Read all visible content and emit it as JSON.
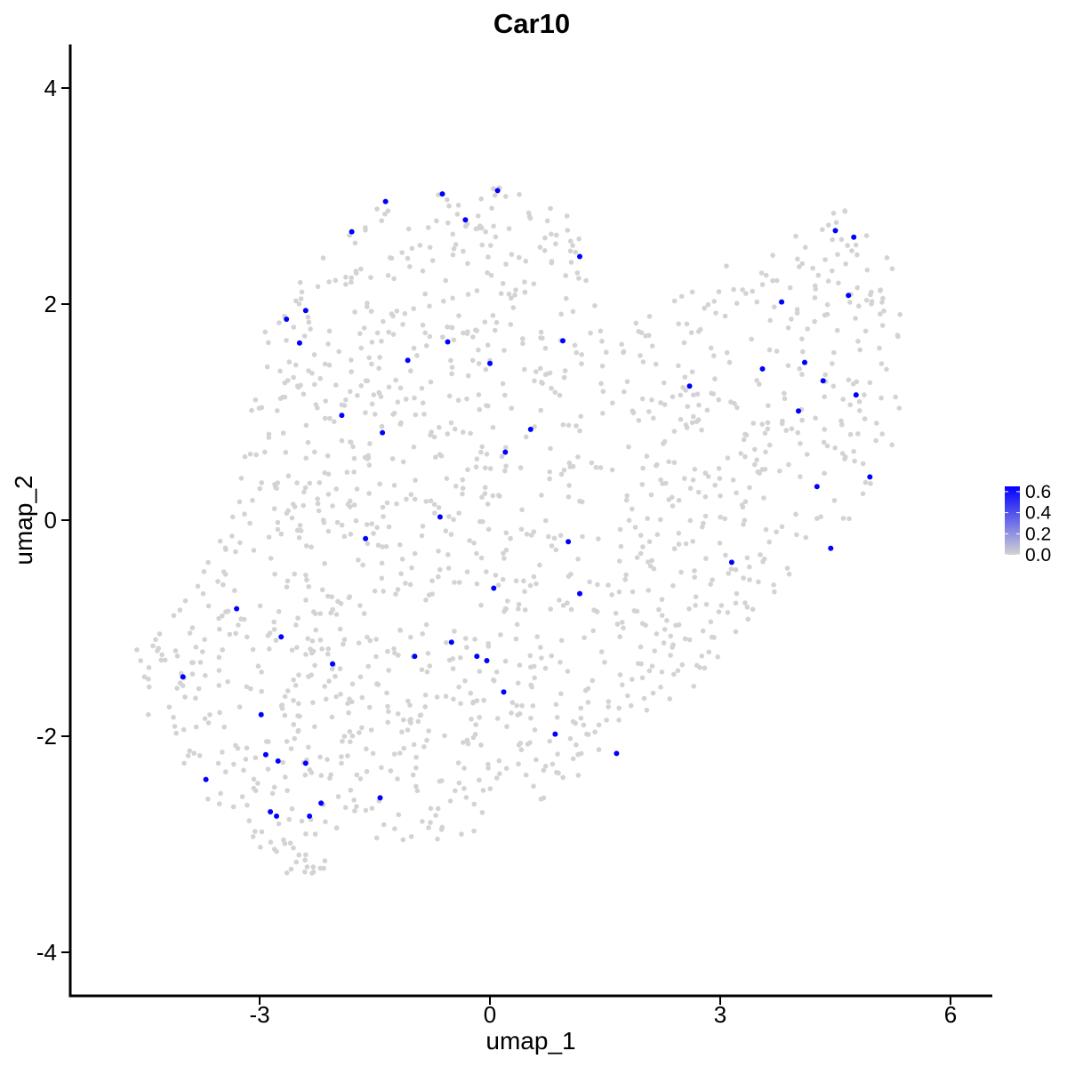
{
  "chart_data": {
    "type": "scatter",
    "title": "Car10",
    "xlabel": "umap_1",
    "ylabel": "umap_2",
    "xlim": [
      -5.4,
      6.6
    ],
    "ylim": [
      -4.35,
      4.4
    ],
    "xticks": [
      -3,
      0,
      3,
      6
    ],
    "xtick_labels": [
      "-3",
      "0",
      "3",
      "6"
    ],
    "yticks": [
      -4,
      -2,
      0,
      2,
      4
    ],
    "ytick_labels": [
      "-4",
      "-2",
      "0",
      "2",
      "4"
    ],
    "grid": false,
    "colors": {
      "low": "#d3d3d3",
      "high": "#0000ff"
    },
    "legend": {
      "placement": "right",
      "type": "colorbar",
      "range": [
        0.0,
        0.65
      ],
      "labels": [
        "0.6",
        "0.4",
        "0.2",
        "0.0"
      ],
      "label_values": [
        0.6,
        0.4,
        0.2,
        0.0
      ]
    },
    "background_cells": {
      "approximate_count": 1500,
      "value": 0.0,
      "region_note": "cells with zero expression spread across two merged lobes"
    },
    "expressing_cells": [
      {
        "x": -4.0,
        "y": -1.45
      },
      {
        "x": -3.7,
        "y": -2.4
      },
      {
        "x": -3.3,
        "y": -0.82
      },
      {
        "x": -2.98,
        "y": -1.8
      },
      {
        "x": -2.92,
        "y": -2.17
      },
      {
        "x": -2.86,
        "y": -2.7
      },
      {
        "x": -2.78,
        "y": -2.74
      },
      {
        "x": -2.76,
        "y": -2.23
      },
      {
        "x": -2.72,
        "y": -1.08
      },
      {
        "x": -2.65,
        "y": 1.86
      },
      {
        "x": -2.48,
        "y": 1.64
      },
      {
        "x": -2.4,
        "y": 1.94
      },
      {
        "x": -2.4,
        "y": -2.25
      },
      {
        "x": -2.35,
        "y": -2.74
      },
      {
        "x": -2.2,
        "y": -2.62
      },
      {
        "x": -2.05,
        "y": -1.33
      },
      {
        "x": -1.93,
        "y": 0.97
      },
      {
        "x": -1.8,
        "y": 2.67
      },
      {
        "x": -1.62,
        "y": -0.17
      },
      {
        "x": -1.4,
        "y": 0.81
      },
      {
        "x": -1.43,
        "y": -2.57
      },
      {
        "x": -1.36,
        "y": 2.95
      },
      {
        "x": -1.07,
        "y": 1.48
      },
      {
        "x": -0.98,
        "y": -1.26
      },
      {
        "x": -0.62,
        "y": 3.02
      },
      {
        "x": -0.65,
        "y": 0.03
      },
      {
        "x": -0.55,
        "y": 1.65
      },
      {
        "x": -0.5,
        "y": -1.13
      },
      {
        "x": -0.32,
        "y": 2.78
      },
      {
        "x": -0.17,
        "y": -1.26
      },
      {
        "x": -0.04,
        "y": -1.3
      },
      {
        "x": 0.0,
        "y": 1.45
      },
      {
        "x": 0.05,
        "y": -0.63
      },
      {
        "x": 0.1,
        "y": 3.05
      },
      {
        "x": 0.18,
        "y": -1.59
      },
      {
        "x": 0.2,
        "y": 0.63
      },
      {
        "x": 0.53,
        "y": 0.84
      },
      {
        "x": 0.85,
        "y": -1.98
      },
      {
        "x": 0.95,
        "y": 1.66
      },
      {
        "x": 1.02,
        "y": -0.2
      },
      {
        "x": 1.17,
        "y": -0.68
      },
      {
        "x": 1.17,
        "y": 2.44
      },
      {
        "x": 1.65,
        "y": -2.16
      },
      {
        "x": 2.6,
        "y": 1.24
      },
      {
        "x": 3.15,
        "y": -0.39
      },
      {
        "x": 3.55,
        "y": 1.4
      },
      {
        "x": 3.8,
        "y": 2.02
      },
      {
        "x": 4.02,
        "y": 1.01
      },
      {
        "x": 4.1,
        "y": 1.46
      },
      {
        "x": 4.26,
        "y": 0.31
      },
      {
        "x": 4.34,
        "y": 1.29
      },
      {
        "x": 4.44,
        "y": -0.26
      },
      {
        "x": 4.5,
        "y": 2.68
      },
      {
        "x": 4.67,
        "y": 2.08
      },
      {
        "x": 4.74,
        "y": 2.62
      },
      {
        "x": 4.77,
        "y": 1.16
      },
      {
        "x": 4.95,
        "y": 0.4
      }
    ]
  }
}
